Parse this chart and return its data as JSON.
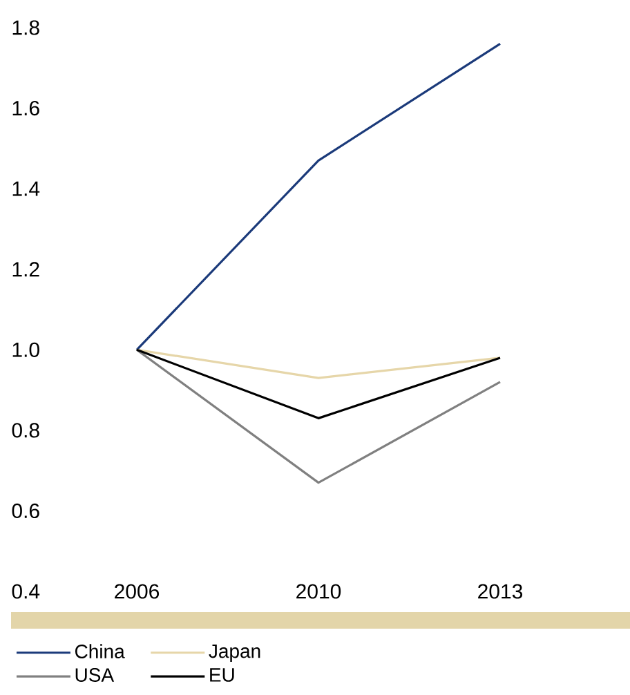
{
  "chart_data": {
    "type": "line",
    "categories": [
      "2006",
      "2010",
      "2013"
    ],
    "series": [
      {
        "name": "China",
        "color": "#1b3a7a",
        "values": [
          1.0,
          1.47,
          1.76
        ]
      },
      {
        "name": "Japan",
        "color": "#e6d6a9",
        "values": [
          1.0,
          0.93,
          0.98
        ]
      },
      {
        "name": "USA",
        "color": "#808080",
        "values": [
          1.0,
          0.67,
          0.92
        ]
      },
      {
        "name": "EU",
        "color": "#000000",
        "values": [
          1.0,
          0.83,
          0.98
        ]
      }
    ],
    "ylim": [
      0.4,
      1.8
    ],
    "yticks": [
      0.4,
      0.6,
      0.8,
      {
        "value": 1.0,
        "label": "1.0"
      },
      1.2,
      1.4,
      1.6,
      1.8
    ],
    "grid": false,
    "legend": "bottom",
    "marker": "none",
    "line_style": "solid"
  }
}
